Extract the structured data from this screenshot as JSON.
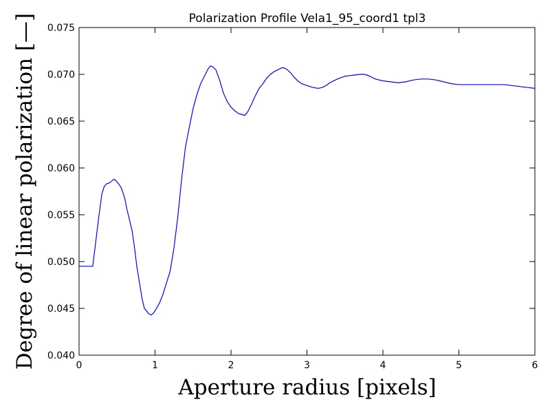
{
  "chart_data": {
    "type": "line",
    "title": "Polarization Profile Vela1_95_coord1 tpl3",
    "xlabel": "Aperture radius [pixels]",
    "ylabel": "Degree of linear polarization [—]",
    "xlim": [
      0,
      6
    ],
    "ylim": [
      0.04,
      0.075
    ],
    "x_ticks": [
      0,
      1,
      2,
      3,
      4,
      5,
      6
    ],
    "x_tick_labels": [
      "0",
      "1",
      "2",
      "3",
      "4",
      "5",
      "6"
    ],
    "y_ticks": [
      0.04,
      0.045,
      0.05,
      0.055,
      0.06,
      0.065,
      0.07,
      0.075
    ],
    "y_tick_labels": [
      "0.040",
      "0.045",
      "0.050",
      "0.055",
      "0.060",
      "0.065",
      "0.070",
      "0.075"
    ],
    "grid": false,
    "line_color": "#0000ff",
    "series": [
      {
        "x": [
          0,
          0.15,
          0.18,
          0.2,
          0.23,
          0.26,
          0.3,
          0.33,
          0.36,
          0.4,
          0.43,
          0.46,
          0.48,
          0.5,
          0.53,
          0.56,
          0.6,
          0.63,
          0.66,
          0.7,
          0.73,
          0.76,
          0.8,
          0.83,
          0.86,
          0.9,
          0.92,
          0.95,
          0.98,
          1.02,
          1.06,
          1.1,
          1.15,
          1.2,
          1.25,
          1.3,
          1.35,
          1.4,
          1.45,
          1.5,
          1.55,
          1.6,
          1.65,
          1.7,
          1.73,
          1.76,
          1.8,
          1.85,
          1.9,
          1.95,
          2.0,
          2.05,
          2.1,
          2.15,
          2.18,
          2.22,
          2.27,
          2.32,
          2.37,
          2.42,
          2.47,
          2.52,
          2.57,
          2.62,
          2.67,
          2.7,
          2.74,
          2.78,
          2.83,
          2.88,
          2.93,
          3.0,
          3.08,
          3.15,
          3.2,
          3.25,
          3.3,
          3.4,
          3.5,
          3.6,
          3.7,
          3.75,
          3.8,
          3.9,
          4.0,
          4.1,
          4.2,
          4.3,
          4.4,
          4.5,
          4.6,
          4.7,
          4.8,
          4.9,
          5.0,
          5.1,
          5.2,
          5.3,
          5.4,
          5.5,
          5.6,
          5.7,
          5.8,
          5.9,
          6.0
        ],
        "y": [
          0.0495,
          0.0495,
          0.0495,
          0.0508,
          0.0528,
          0.0548,
          0.0572,
          0.058,
          0.0583,
          0.0584,
          0.0586,
          0.0588,
          0.0587,
          0.0585,
          0.0582,
          0.0578,
          0.0568,
          0.0556,
          0.0546,
          0.0532,
          0.0515,
          0.0495,
          0.0475,
          0.046,
          0.045,
          0.0446,
          0.0444,
          0.0443,
          0.0445,
          0.045,
          0.0456,
          0.0464,
          0.0477,
          0.049,
          0.0515,
          0.0548,
          0.0588,
          0.0622,
          0.0643,
          0.0663,
          0.0678,
          0.069,
          0.0698,
          0.0706,
          0.0709,
          0.0708,
          0.0705,
          0.0694,
          0.068,
          0.0671,
          0.0665,
          0.0661,
          0.0658,
          0.0657,
          0.0656,
          0.066,
          0.0668,
          0.0677,
          0.0685,
          0.069,
          0.0696,
          0.07,
          0.0703,
          0.0705,
          0.0707,
          0.0707,
          0.0705,
          0.0702,
          0.0697,
          0.0693,
          0.069,
          0.0688,
          0.0686,
          0.0685,
          0.0686,
          0.0688,
          0.0691,
          0.0695,
          0.0698,
          0.0699,
          0.07,
          0.07,
          0.0699,
          0.0695,
          0.0693,
          0.0692,
          0.0691,
          0.0692,
          0.0694,
          0.0695,
          0.0695,
          0.0694,
          0.0692,
          0.069,
          0.0689,
          0.0689,
          0.0689,
          0.0689,
          0.0689,
          0.0689,
          0.0689,
          0.0688,
          0.0687,
          0.0686,
          0.0685
        ]
      }
    ]
  }
}
